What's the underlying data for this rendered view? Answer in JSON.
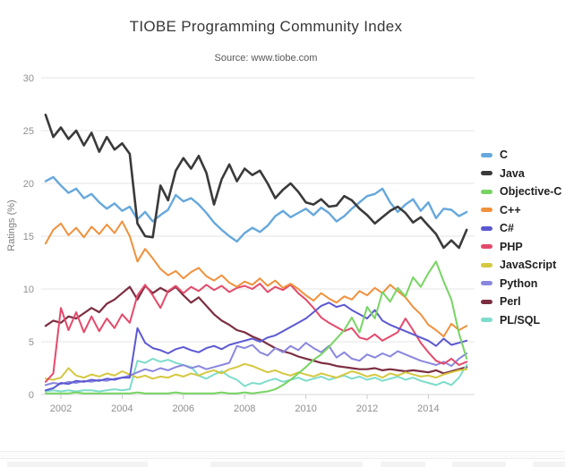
{
  "header": {
    "title": "TIOBE Programming Community Index",
    "subtitle": "Source: www.tiobe.com"
  },
  "chart_data": {
    "type": "line",
    "title": "TIOBE Programming Community Index",
    "subtitle": "Source: www.tiobe.com",
    "xlabel": "",
    "ylabel": "Ratings (%)",
    "ylim": [
      0,
      30
    ],
    "xlim": [
      2001.35,
      2015.4
    ],
    "yticks": [
      0,
      5,
      10,
      15,
      20,
      25,
      30
    ],
    "xticks": [
      2002,
      2004,
      2006,
      2008,
      2010,
      2012,
      2014
    ],
    "grid": true,
    "legend_position": "right",
    "x": [
      2001.5,
      2001.75,
      2002,
      2002.25,
      2002.5,
      2002.75,
      2003,
      2003.25,
      2003.5,
      2003.75,
      2004,
      2004.25,
      2004.5,
      2004.75,
      2005,
      2005.25,
      2005.5,
      2005.75,
      2006,
      2006.25,
      2006.5,
      2006.75,
      2007,
      2007.25,
      2007.5,
      2007.75,
      2008,
      2008.25,
      2008.5,
      2008.75,
      2009,
      2009.25,
      2009.5,
      2009.75,
      2010,
      2010.25,
      2010.5,
      2010.75,
      2011,
      2011.25,
      2011.5,
      2011.75,
      2012,
      2012.25,
      2012.5,
      2012.75,
      2013,
      2013.25,
      2013.5,
      2013.75,
      2014,
      2014.25,
      2014.5,
      2014.75,
      2015,
      2015.25
    ],
    "series": [
      {
        "name": "C",
        "color": "#66a8dc",
        "width": 2.4,
        "values": [
          20.2,
          20.6,
          19.8,
          19.1,
          19.5,
          18.6,
          19.0,
          18.2,
          17.6,
          18.1,
          17.4,
          17.8,
          16.6,
          17.3,
          16.4,
          17.0,
          17.5,
          18.9,
          18.3,
          18.6,
          18.0,
          17.2,
          16.3,
          15.6,
          15.0,
          14.5,
          15.3,
          15.8,
          15.4,
          16.0,
          16.9,
          17.4,
          16.8,
          17.2,
          17.6,
          17.0,
          17.7,
          17.2,
          16.4,
          16.9,
          17.6,
          18.2,
          18.8,
          19.0,
          19.5,
          18.2,
          17.3,
          18.0,
          18.5,
          17.4,
          18.2,
          16.7,
          17.6,
          17.5,
          16.9,
          17.3
        ]
      },
      {
        "name": "Java",
        "color": "#3a3a3a",
        "width": 2.6,
        "values": [
          26.5,
          24.4,
          25.3,
          24.2,
          25.0,
          23.6,
          24.8,
          23.0,
          24.4,
          23.2,
          23.8,
          22.8,
          16.2,
          15.0,
          14.9,
          19.8,
          18.4,
          21.2,
          22.4,
          21.4,
          22.6,
          21.0,
          18.0,
          20.4,
          21.8,
          20.2,
          21.4,
          20.8,
          21.2,
          20.0,
          18.6,
          19.4,
          20.0,
          19.2,
          18.2,
          18.0,
          18.5,
          17.8,
          17.9,
          18.8,
          18.4,
          17.6,
          17.0,
          16.2,
          16.8,
          17.4,
          17.8,
          17.2,
          16.3,
          16.8,
          16.0,
          15.2,
          13.9,
          14.6,
          13.9,
          15.6
        ]
      },
      {
        "name": "Objective-C",
        "color": "#77d463",
        "width": 2,
        "values": [
          0.1,
          0.1,
          0.1,
          0.1,
          0.2,
          0.1,
          0.1,
          0.1,
          0.1,
          0.1,
          0.1,
          0.1,
          0.2,
          0.1,
          0.1,
          0.1,
          0.1,
          0.2,
          0.1,
          0.1,
          0.1,
          0.1,
          0.1,
          0.2,
          0.1,
          0.1,
          0.2,
          0.1,
          0.2,
          0.3,
          0.5,
          0.9,
          1.4,
          2.0,
          2.6,
          3.3,
          3.8,
          4.5,
          5.3,
          6.1,
          7.3,
          5.9,
          8.3,
          7.2,
          9.7,
          8.8,
          10.1,
          9.3,
          11.1,
          10.2,
          11.5,
          12.6,
          10.7,
          9.0,
          5.8,
          3.4
        ]
      },
      {
        "name": "C++",
        "color": "#f0913c",
        "width": 2,
        "values": [
          14.3,
          15.6,
          16.2,
          15.1,
          15.8,
          14.9,
          15.9,
          15.2,
          16.1,
          15.3,
          16.4,
          15.0,
          12.6,
          13.8,
          12.9,
          11.9,
          11.3,
          11.7,
          11.0,
          11.6,
          12.0,
          11.2,
          10.8,
          11.3,
          10.6,
          10.2,
          10.7,
          10.4,
          11.0,
          10.3,
          10.8,
          10.1,
          10.5,
          10.0,
          9.4,
          8.9,
          9.6,
          9.1,
          8.7,
          9.3,
          9.0,
          9.8,
          9.4,
          10.1,
          9.6,
          10.4,
          9.8,
          9.2,
          8.3,
          7.6,
          6.6,
          6.1,
          5.5,
          6.7,
          6.1,
          6.5
        ]
      },
      {
        "name": "C#",
        "color": "#5b58d2",
        "width": 2,
        "values": [
          0.4,
          0.6,
          1.1,
          1.0,
          1.3,
          1.2,
          1.4,
          1.3,
          1.5,
          1.4,
          1.6,
          1.6,
          6.3,
          4.9,
          4.4,
          4.2,
          3.9,
          4.3,
          4.5,
          4.2,
          4.0,
          4.4,
          4.6,
          4.3,
          4.7,
          4.9,
          5.1,
          5.3,
          5.0,
          5.4,
          5.6,
          6.0,
          6.4,
          6.8,
          7.2,
          7.8,
          8.4,
          8.7,
          8.3,
          8.5,
          8.0,
          7.6,
          7.2,
          8.0,
          7.0,
          6.6,
          6.3,
          6.0,
          5.7,
          5.4,
          5.1,
          4.6,
          5.3,
          4.7,
          4.9,
          5.1
        ]
      },
      {
        "name": "PHP",
        "color": "#e44a6b",
        "width": 2,
        "values": [
          1.2,
          2.0,
          8.2,
          6.1,
          7.8,
          5.9,
          7.4,
          6.0,
          7.2,
          6.3,
          7.6,
          6.8,
          9.4,
          10.4,
          9.4,
          8.2,
          9.8,
          10.3,
          9.6,
          10.2,
          9.8,
          10.4,
          9.9,
          10.3,
          9.7,
          10.1,
          10.3,
          10.0,
          10.5,
          9.7,
          10.2,
          9.9,
          10.4,
          9.6,
          9.0,
          8.2,
          7.3,
          6.8,
          6.4,
          6.0,
          6.3,
          5.4,
          5.2,
          5.7,
          5.1,
          5.5,
          5.9,
          7.2,
          6.1,
          4.9,
          4.0,
          3.2,
          2.9,
          3.4,
          2.8,
          3.1
        ]
      },
      {
        "name": "JavaScript",
        "color": "#d5c841",
        "width": 2,
        "values": [
          1.5,
          1.4,
          1.6,
          2.5,
          1.8,
          1.6,
          1.9,
          1.7,
          2.0,
          1.8,
          2.2,
          1.9,
          1.6,
          1.8,
          1.5,
          1.7,
          1.6,
          1.9,
          1.7,
          2.0,
          1.8,
          2.1,
          2.3,
          2.0,
          2.4,
          2.6,
          2.9,
          2.7,
          2.4,
          2.1,
          2.3,
          2.0,
          1.8,
          2.1,
          1.9,
          1.7,
          2.0,
          1.8,
          1.6,
          1.9,
          2.2,
          2.0,
          1.7,
          1.9,
          1.6,
          2.0,
          1.8,
          2.1,
          1.9,
          1.7,
          1.8,
          1.6,
          1.9,
          2.1,
          2.3,
          2.4
        ]
      },
      {
        "name": "Python",
        "color": "#8a87de",
        "width": 2,
        "values": [
          0.9,
          1.1,
          1.0,
          1.2,
          1.1,
          1.3,
          1.2,
          1.4,
          1.3,
          1.5,
          1.6,
          1.8,
          2.1,
          2.4,
          2.2,
          2.5,
          2.3,
          2.6,
          2.8,
          2.5,
          2.7,
          2.4,
          2.6,
          2.8,
          3.0,
          4.6,
          4.4,
          4.7,
          4.0,
          3.7,
          4.4,
          4.0,
          4.6,
          4.2,
          4.9,
          4.4,
          4.0,
          4.6,
          3.5,
          4.0,
          3.4,
          3.2,
          3.8,
          3.5,
          3.9,
          3.6,
          4.1,
          3.8,
          3.5,
          3.2,
          3.0,
          2.8,
          3.1,
          2.7,
          3.4,
          3.9
        ]
      },
      {
        "name": "Perl",
        "color": "#7c2e41",
        "width": 2.2,
        "values": [
          6.5,
          7.0,
          6.8,
          7.4,
          7.2,
          7.7,
          8.2,
          7.8,
          8.6,
          9.0,
          9.6,
          10.2,
          9.0,
          10.3,
          9.6,
          10.1,
          9.7,
          10.2,
          9.4,
          8.7,
          9.2,
          8.4,
          7.6,
          7.0,
          6.6,
          6.1,
          5.9,
          5.5,
          5.2,
          4.8,
          4.4,
          4.1,
          3.9,
          3.6,
          3.4,
          3.2,
          3.0,
          2.9,
          2.7,
          2.6,
          2.5,
          2.4,
          2.4,
          2.5,
          2.3,
          2.4,
          2.3,
          2.2,
          2.3,
          2.2,
          2.1,
          2.3,
          2.0,
          2.2,
          2.4,
          2.6
        ]
      },
      {
        "name": "PL/SQL",
        "color": "#7edccb",
        "width": 2,
        "values": [
          0.3,
          0.4,
          0.3,
          0.4,
          0.3,
          0.4,
          0.4,
          0.3,
          0.4,
          0.5,
          0.4,
          0.5,
          3.2,
          3.0,
          3.4,
          3.1,
          3.3,
          3.0,
          2.8,
          2.6,
          1.8,
          1.5,
          1.9,
          2.2,
          1.7,
          1.4,
          0.8,
          1.1,
          1.0,
          1.3,
          1.5,
          1.2,
          1.4,
          1.6,
          1.3,
          1.5,
          1.7,
          1.4,
          1.6,
          1.8,
          1.5,
          1.7,
          1.4,
          1.6,
          1.3,
          1.5,
          1.7,
          1.4,
          1.6,
          1.3,
          1.1,
          0.9,
          1.2,
          0.9,
          1.6,
          2.8
        ]
      }
    ],
    "draw_order": [
      "Perl",
      "PL/SQL",
      "JavaScript",
      "Python",
      "PHP",
      "C#",
      "C++",
      "Objective-C",
      "C",
      "Java"
    ]
  }
}
